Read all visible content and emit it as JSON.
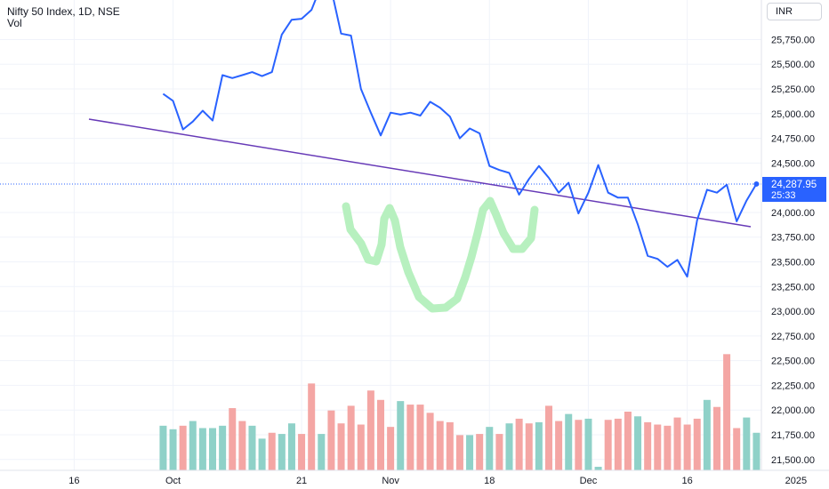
{
  "legend": {
    "title": "Nifty 50 Index, 1D, NSE",
    "volume": "Vol"
  },
  "currency_button": "INR",
  "last_price": {
    "value": "24,287.95",
    "countdown": "25:33",
    "color": "#2962ff"
  },
  "colors": {
    "price_line": "#2962ff",
    "trendline": "#673ab7",
    "highlight": "#b7f0bf",
    "volume_up": "#8fd1c8",
    "volume_down": "#f4a6a4",
    "grid": "#f0f3fa"
  },
  "chart_data": {
    "type": "line",
    "title": "Nifty 50 Index, 1D, NSE",
    "y_range": [
      21390,
      26150
    ],
    "x_range": [
      -16.5,
      60.5
    ],
    "yticks": [
      {
        "value": 25750,
        "label": "25,750.00"
      },
      {
        "value": 25500,
        "label": "25,500.00"
      },
      {
        "value": 25250,
        "label": "25,250.00"
      },
      {
        "value": 25000,
        "label": "25,000.00"
      },
      {
        "value": 24750,
        "label": "24,750.00"
      },
      {
        "value": 24500,
        "label": "24,500.00"
      },
      {
        "value": 24000,
        "label": "24,000.00"
      },
      {
        "value": 23750,
        "label": "23,750.00"
      },
      {
        "value": 23500,
        "label": "23,500.00"
      },
      {
        "value": 23250,
        "label": "23,250.00"
      },
      {
        "value": 23000,
        "label": "23,000.00"
      },
      {
        "value": 22750,
        "label": "22,750.00"
      },
      {
        "value": 22500,
        "label": "22,500.00"
      },
      {
        "value": 22250,
        "label": "22,250.00"
      },
      {
        "value": 22000,
        "label": "22,000.00"
      },
      {
        "value": 21750,
        "label": "21,750.00"
      },
      {
        "value": 21500,
        "label": "21,500.00"
      }
    ],
    "xticks": [
      {
        "index": -9,
        "label": "16"
      },
      {
        "index": 1,
        "label": "Oct"
      },
      {
        "index": 14,
        "label": "21"
      },
      {
        "index": 23,
        "label": "Nov"
      },
      {
        "index": 33,
        "label": "18"
      },
      {
        "index": 43,
        "label": "Dec"
      },
      {
        "index": 53,
        "label": "16"
      },
      {
        "index": 64,
        "label": "2025"
      }
    ],
    "series": [
      {
        "type": "line",
        "values": [
          25200,
          25130,
          24840,
          24920,
          25030,
          24930,
          25390,
          25360,
          25390,
          25420,
          25380,
          25420,
          25800,
          25950,
          25960,
          26050,
          26300,
          26260,
          25810,
          25790,
          25250,
          25010,
          24780,
          25010,
          24990,
          25010,
          24980,
          25120,
          25060,
          24970,
          24750,
          24850,
          24800,
          24470,
          24430,
          24400,
          24180,
          24340,
          24470,
          24350,
          24200,
          24300,
          23990,
          24200,
          24480,
          24200,
          24150,
          24150,
          23880,
          23560,
          23530,
          23450,
          23520,
          23350,
          23920,
          24230,
          24200,
          24280,
          23910,
          24120,
          24287.95
        ]
      }
    ],
    "volume": {
      "direction": [
        "up",
        "up",
        "down",
        "up",
        "up",
        "up",
        "up",
        "down",
        "down",
        "up",
        "up",
        "down",
        "up",
        "up",
        "down",
        "down",
        "up",
        "down",
        "down",
        "down",
        "down",
        "down",
        "down",
        "down",
        "up",
        "down",
        "down",
        "down",
        "down",
        "down",
        "down",
        "up",
        "down",
        "up",
        "down",
        "up",
        "down",
        "down",
        "up",
        "down",
        "down",
        "up",
        "down",
        "up",
        "up",
        "down",
        "down",
        "down",
        "up",
        "down",
        "down",
        "down",
        "down",
        "down",
        "down",
        "up",
        "down",
        "down",
        "down",
        "up",
        "up"
      ],
      "relative": [
        0.38,
        0.35,
        0.38,
        0.42,
        0.36,
        0.36,
        0.38,
        0.53,
        0.42,
        0.38,
        0.27,
        0.32,
        0.31,
        0.4,
        0.31,
        0.74,
        0.31,
        0.51,
        0.4,
        0.55,
        0.39,
        0.68,
        0.6,
        0.37,
        0.59,
        0.56,
        0.56,
        0.49,
        0.42,
        0.41,
        0.3,
        0.3,
        0.31,
        0.37,
        0.31,
        0.4,
        0.44,
        0.4,
        0.41,
        0.55,
        0.42,
        0.48,
        0.43,
        0.44,
        0.03,
        0.43,
        0.44,
        0.5,
        0.46,
        0.41,
        0.39,
        0.38,
        0.45,
        0.39,
        0.44,
        0.6,
        0.54,
        0.99,
        0.36,
        0.45,
        0.32
      ]
    }
  }
}
